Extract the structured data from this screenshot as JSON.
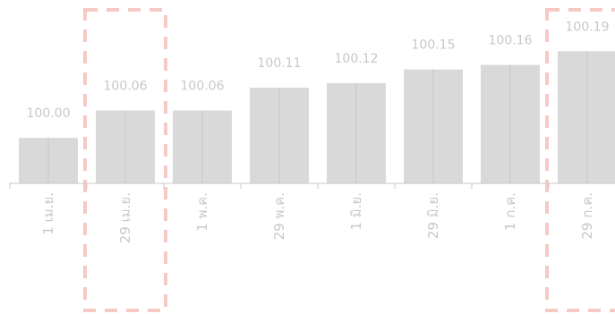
{
  "chart_data": {
    "type": "bar",
    "title": "",
    "xlabel": "",
    "ylabel": "",
    "categories": [
      "1 เม.ย.",
      "29 เม.ย.",
      "1 พ.ค.",
      "29 พ.ค.",
      "1 มิ.ย.",
      "29 มิ.ย.",
      "1 ก.ค.",
      "29 ก.ค."
    ],
    "values": [
      100.0,
      100.06,
      100.06,
      100.11,
      100.12,
      100.15,
      100.16,
      100.19
    ],
    "value_labels": [
      "100.00",
      "100.06",
      "100.06",
      "100.11",
      "100.12",
      "100.15",
      "100.16",
      "100.19"
    ],
    "ylim": [
      99.9,
      100.22
    ],
    "grid": false,
    "highlighted_categories": [
      "29 เม.ย.",
      "29 ก.ค."
    ],
    "colors": {
      "bar": "#d9d9d9",
      "bar_divider": "#c6c6c6",
      "label": "#c8c8c8",
      "axis": "#c8c8c8",
      "highlight_border": "#f7c9c4"
    }
  }
}
